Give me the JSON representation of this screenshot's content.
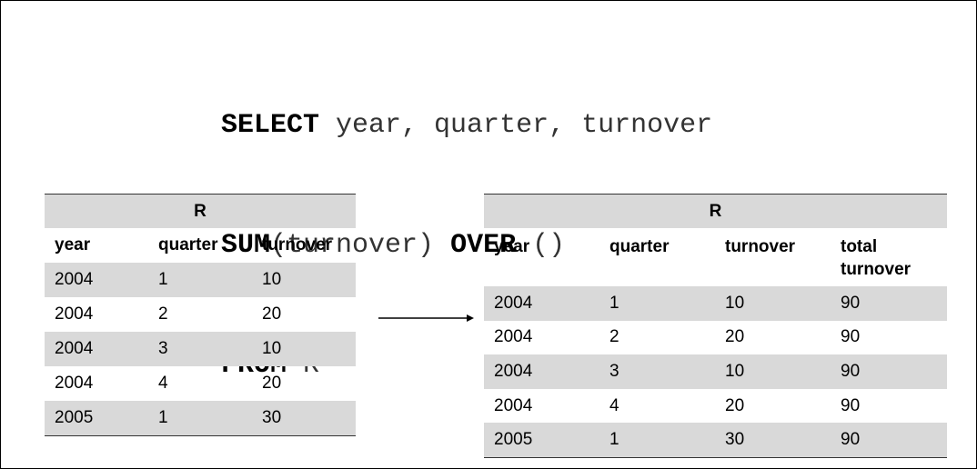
{
  "sql": {
    "line1": {
      "kw": "SELECT",
      "rest": " year, quarter, turnover"
    },
    "line2": {
      "kw1": "SUM",
      "mid": "(turnover) ",
      "kw2": "OVER",
      "rest": " ()"
    },
    "line3": {
      "kw": "FROM",
      "rest": " R"
    }
  },
  "left_table": {
    "title": "R",
    "headers": [
      "year",
      "quarter",
      "turnover"
    ],
    "rows": [
      [
        "2004",
        "1",
        "10"
      ],
      [
        "2004",
        "2",
        "20"
      ],
      [
        "2004",
        "3",
        "10"
      ],
      [
        "2004",
        "4",
        "20"
      ],
      [
        "2005",
        "1",
        "30"
      ]
    ]
  },
  "right_table": {
    "title": "R",
    "headers": [
      "year",
      "quarter",
      "turnover",
      "total turnover"
    ],
    "rows": [
      [
        "2004",
        "1",
        "10",
        "90"
      ],
      [
        "2004",
        "2",
        "20",
        "90"
      ],
      [
        "2004",
        "3",
        "10",
        "90"
      ],
      [
        "2004",
        "4",
        "20",
        "90"
      ],
      [
        "2005",
        "1",
        "30",
        "90"
      ]
    ]
  },
  "colors": {
    "shade": "#d9d9d9",
    "rule": "#333333"
  }
}
